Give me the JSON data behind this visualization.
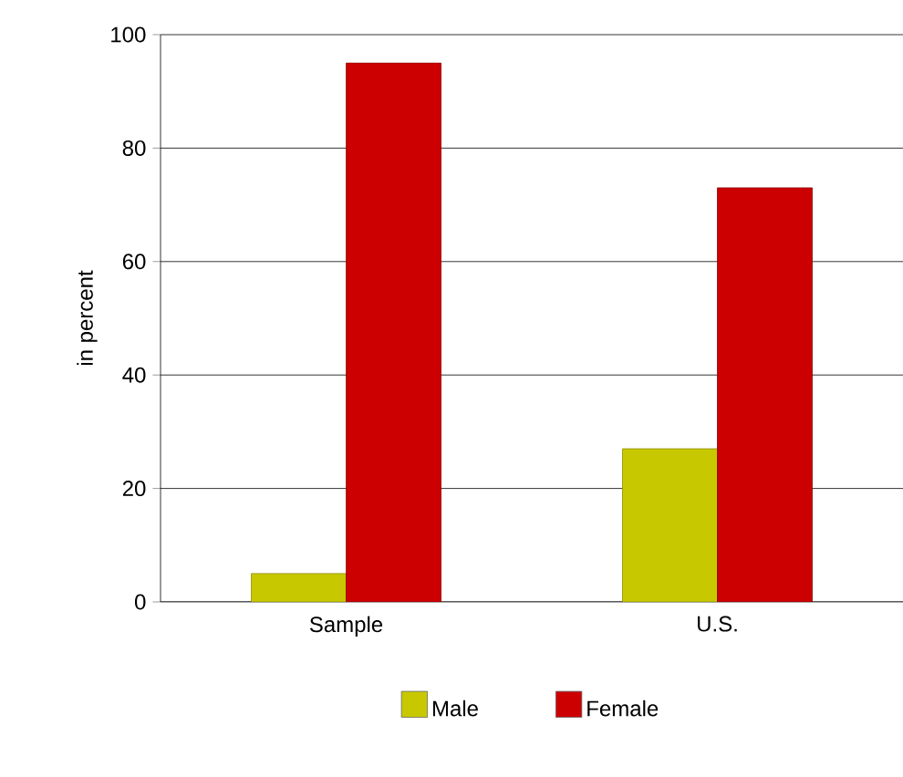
{
  "chart_data": {
    "type": "bar",
    "ylabel": "in percent",
    "categories": [
      "Sample",
      "U.S."
    ],
    "series": [
      {
        "name": "Male",
        "color": "#c8c800",
        "values": [
          5,
          27
        ]
      },
      {
        "name": "Female",
        "color": "#cc0000",
        "values": [
          95,
          73
        ]
      }
    ],
    "ylim": [
      0,
      100
    ],
    "yticks": [
      0,
      20,
      40,
      60,
      80,
      100
    ],
    "grid": "y",
    "legend": "bottom"
  }
}
